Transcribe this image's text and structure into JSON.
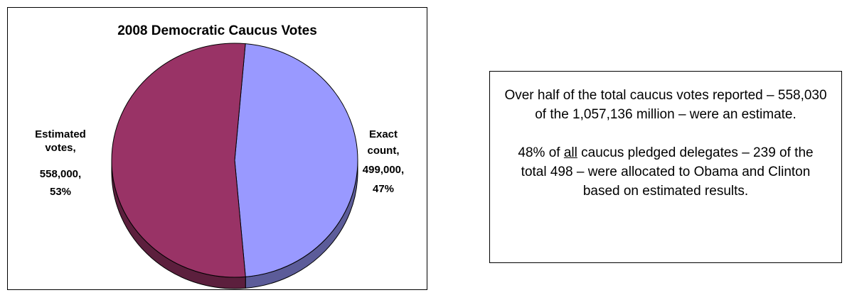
{
  "chart_data": {
    "type": "pie",
    "title": "2008 Democratic Caucus Votes",
    "slices": [
      {
        "label_lines": [
          "Exact",
          "count,",
          "499,000,",
          "47%"
        ],
        "name": "Exact count",
        "value": 499000,
        "percent": 47,
        "color": "#9999ff",
        "side_color": "#5c5c99"
      },
      {
        "label_lines": [
          "Estimated",
          "votes,",
          "558,000,",
          "53%"
        ],
        "name": "Estimated votes",
        "value": 558000,
        "percent": 53,
        "color": "#993366",
        "side_color": "#5c1f3d"
      }
    ]
  },
  "note": {
    "paragraph1": "Over half of the total caucus votes reported – 558,030 of the 1,057,136 million – were an estimate.",
    "paragraph2_prefix": "48% of ",
    "paragraph2_underlined": "all",
    "paragraph2_suffix": " caucus pledged delegates – 239 of the total 498 – were allocated to Obama and Clinton based on estimated results."
  }
}
